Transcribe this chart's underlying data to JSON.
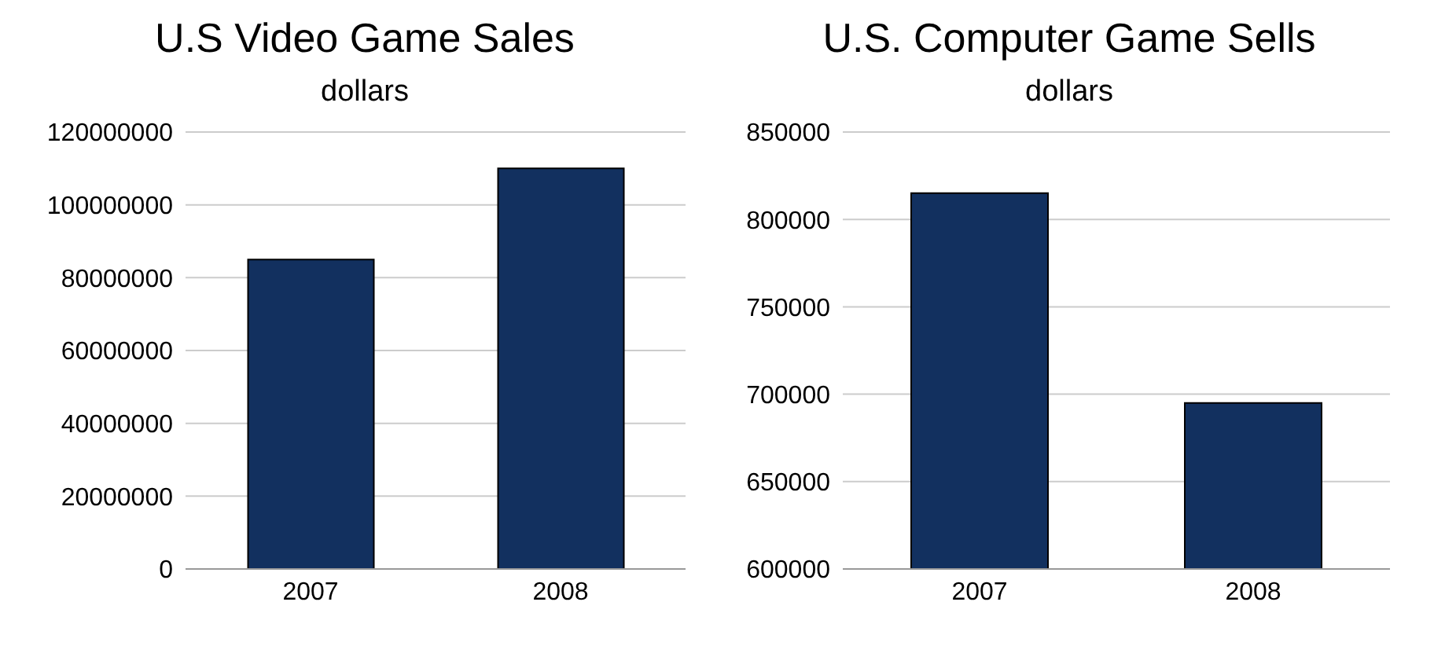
{
  "chart_data": [
    {
      "type": "bar",
      "title": "U.S Video Game Sales",
      "subtitle": "dollars",
      "categories": [
        "2007",
        "2008"
      ],
      "values": [
        85000000,
        110000000
      ],
      "color": "#12305f",
      "ylim": [
        0,
        120000000
      ],
      "yticks": [
        0,
        20000000,
        40000000,
        60000000,
        80000000,
        100000000,
        120000000
      ],
      "grid": "y"
    },
    {
      "type": "bar",
      "title": "U.S. Computer Game Sells",
      "subtitle": "dollars",
      "categories": [
        "2007",
        "2008"
      ],
      "values": [
        815000,
        695000
      ],
      "color": "#12305f",
      "ylim": [
        600000,
        850000
      ],
      "yticks": [
        600000,
        650000,
        700000,
        750000,
        800000,
        850000
      ],
      "grid": "y"
    }
  ]
}
